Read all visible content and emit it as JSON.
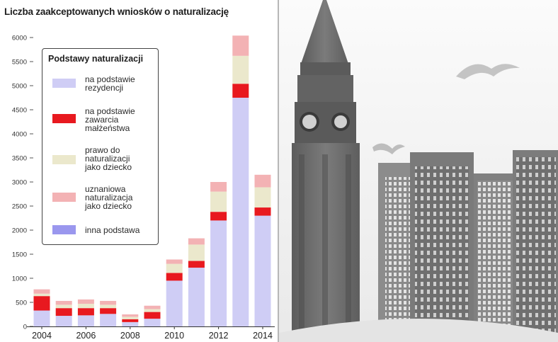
{
  "chart_data": {
    "type": "bar",
    "stacked": true,
    "title": "Liczba zaakceptowanych wniosków o naturalizację",
    "ylim": [
      0,
      6000
    ],
    "yticks": [
      0,
      500,
      1000,
      1500,
      2000,
      2500,
      3000,
      3500,
      4000,
      4500,
      5000,
      5500,
      6000
    ],
    "categories": [
      "2004",
      "2005",
      "2006",
      "2007",
      "2008",
      "2009",
      "2010",
      "2011",
      "2012",
      "2013",
      "2014"
    ],
    "xtick_labels": [
      "2004",
      "",
      "2006",
      "",
      "2008",
      "",
      "2010",
      "",
      "2012",
      "",
      "2014"
    ],
    "legend_title": "Podstawy naturalizacji",
    "legend_position": "top-left",
    "grid": false,
    "series": [
      {
        "name": "na podstawie rezydencji",
        "color": "#cfcdf5",
        "values": [
          330,
          220,
          230,
          260,
          90,
          160,
          950,
          1220,
          2200,
          4750,
          2300
        ]
      },
      {
        "name": "na podstawie zawarcia małżeństwa",
        "color": "#e8191f",
        "values": [
          300,
          160,
          150,
          120,
          60,
          140,
          160,
          140,
          180,
          290,
          170
        ]
      },
      {
        "name": "prawo do naturalizacji jako dziecko",
        "color": "#ebe8cc",
        "values": [
          50,
          70,
          90,
          70,
          50,
          60,
          190,
          340,
          420,
          580,
          420
        ]
      },
      {
        "name": "uznaniowa naturalizacja jako dziecko",
        "color": "#f3b2b4",
        "values": [
          90,
          80,
          90,
          80,
          50,
          70,
          90,
          130,
          200,
          420,
          260
        ]
      },
      {
        "name": "inna podstawa",
        "color": "#9a97ee",
        "values": [
          0,
          0,
          0,
          0,
          0,
          0,
          0,
          0,
          0,
          0,
          0
        ]
      }
    ]
  },
  "legend": {
    "title": "Podstawy naturalizacji",
    "items": [
      {
        "label_lines": [
          "na podstawie",
          "rezydencji"
        ],
        "color": "#cfcdf5"
      },
      {
        "label_lines": [
          "na podstawie",
          "zawarcia",
          "małżeństwa"
        ],
        "color": "#e8191f"
      },
      {
        "label_lines": [
          "prawo do",
          "naturalizacji",
          "jako dziecko"
        ],
        "color": "#ebe8cc"
      },
      {
        "label_lines": [
          "uznaniowa",
          "naturalizacja",
          "jako dziecko"
        ],
        "color": "#f3b2b4"
      },
      {
        "label_lines": [
          "inna podstawa"
        ],
        "color": "#9a97ee"
      }
    ]
  },
  "photo": {
    "palette": {
      "sky": "#f6f6f6",
      "tower": "#6e6e6e",
      "buildings": "#767676",
      "windows": "#d6d6d6"
    }
  }
}
